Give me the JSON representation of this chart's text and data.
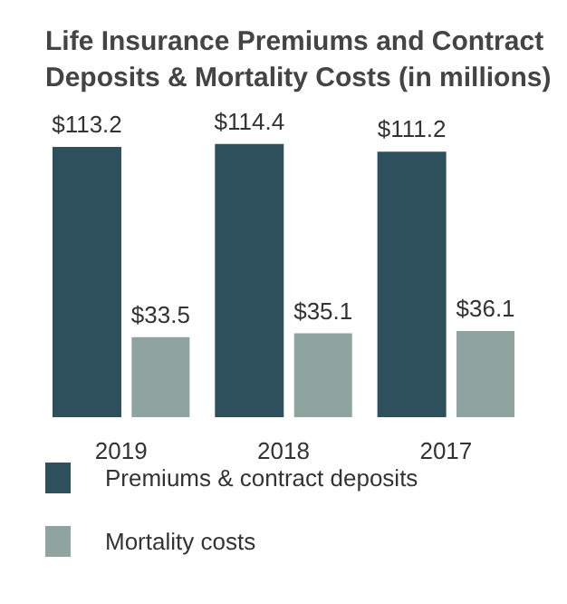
{
  "chart_data": {
    "type": "bar",
    "title": "Life Insurance Premiums and Contract Deposits & Mortality Costs (in millions)",
    "categories": [
      "2019",
      "2018",
      "2017"
    ],
    "series": [
      {
        "name": "Premiums & contract deposits",
        "color": "#2e4f5c",
        "values": [
          113.2,
          114.4,
          111.2
        ],
        "value_labels": [
          "$113.2",
          "$114.4",
          "$111.2"
        ]
      },
      {
        "name": "Mortality costs",
        "color": "#8fa39f",
        "values": [
          33.5,
          35.1,
          36.1
        ],
        "value_labels": [
          "$33.5",
          "$35.1",
          "$36.1"
        ]
      }
    ],
    "legend": "bottom",
    "grid": false
  }
}
